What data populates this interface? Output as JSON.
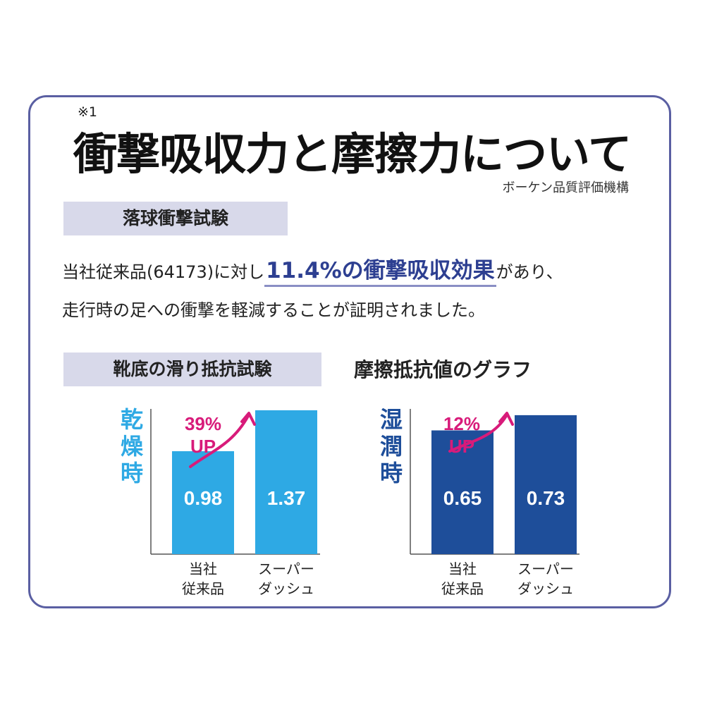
{
  "header": {
    "note": "※1",
    "title": "衝撃吸収力と摩擦力について",
    "source": "ボーケン品質評価機構"
  },
  "section1": {
    "label": "落球衝撃試験",
    "text_before": "当社従来品(64173)に対し",
    "highlight": "11.4%の衝撃吸収効果",
    "text_after": "があり、",
    "line2": "走行時の足への衝撃を軽減することが証明されました。"
  },
  "section2": {
    "label": "靴底の滑り抵抗試験",
    "graph_title": "摩擦抵抗値のグラフ"
  },
  "chart_data": [
    {
      "type": "bar",
      "title": "乾燥時",
      "categories": [
        "当社\n従来品",
        "スーパー\nダッシュ"
      ],
      "values": [
        0.98,
        1.37
      ],
      "value_labels": [
        "0.98",
        "1.37"
      ],
      "annotation": "39%\nUP",
      "color": "#2ea9e4",
      "ylim": [
        0,
        1.45
      ]
    },
    {
      "type": "bar",
      "title": "湿潤時",
      "categories": [
        "当社\n従来品",
        "スーパー\nダッシュ"
      ],
      "values": [
        0.65,
        0.73
      ],
      "value_labels": [
        "0.65",
        "0.73"
      ],
      "annotation": "12%\nUP",
      "color": "#1e4e9a",
      "ylim": [
        0,
        0.8
      ]
    }
  ],
  "colors": {
    "accent_arrow": "#d81b7a",
    "title_dry": "#2ea9e4",
    "title_wet": "#1e4e9a"
  }
}
